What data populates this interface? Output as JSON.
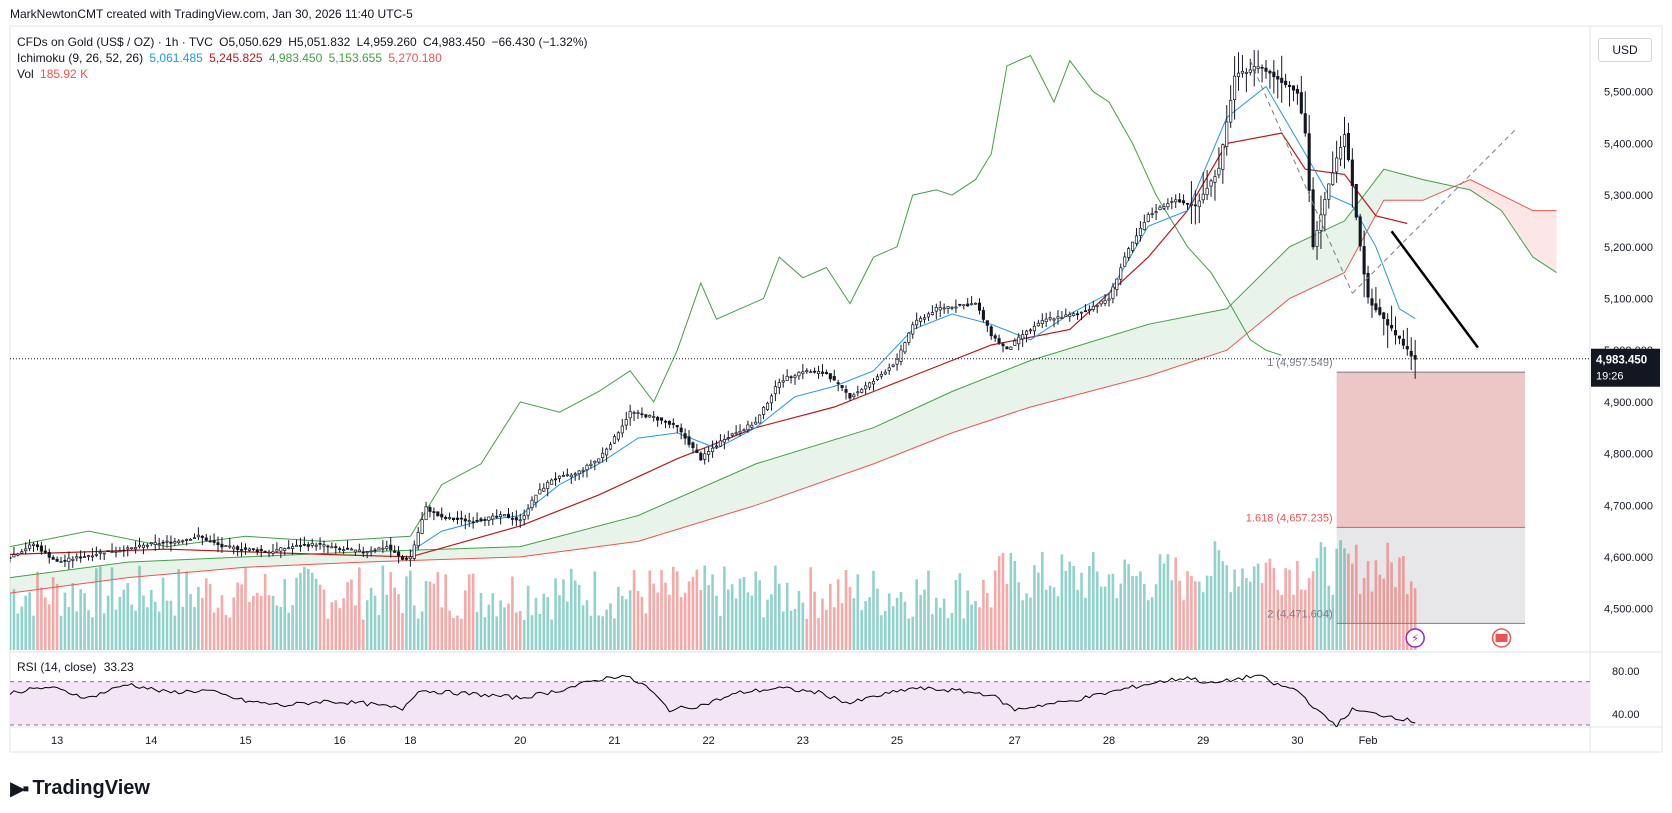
{
  "attribution": "MarkNewtonCMT created with TradingView.com, Jan 30, 2026 11:40 UTC-5",
  "currency": "USD",
  "legend": {
    "symbol": "CFDs on Gold (US$ / OZ) · 1h · TVC",
    "open": "O5,050.629",
    "high": "H5,051.832",
    "low": "L4,959.260",
    "close": "C4,983.450",
    "change": "−66.430 (−1.32%)",
    "ichimoku_label": "Ichimoku (9, 26, 52, 26)",
    "ichimoku_values": [
      "5,061.485",
      "5,245.825",
      "4,983.450",
      "5,153.655",
      "5,270.180"
    ],
    "vol_label": "Vol",
    "vol_value": "185.92 K"
  },
  "rsi_legend": {
    "label": "RSI (14, close)",
    "value": "33.23"
  },
  "logo_text": "TradingView",
  "colors": {
    "up": "#26a69a",
    "down": "#ef5350",
    "tenkan": "#2196f3",
    "kijun": "#b71c1c",
    "lagging": "#43a047",
    "span_a": "#43a047",
    "span_b": "#ef5350",
    "rsi_band": "#f3e5f5",
    "rsi_line": "#000000"
  },
  "chart_data": {
    "type": "candlestick",
    "title": "CFDs on Gold (US$ / OZ) · 1h · TVC",
    "ylim": [
      4420,
      5600
    ],
    "y_ticks": [
      4500,
      4600,
      4700,
      4800,
      4900,
      5000,
      5100,
      5200,
      5300,
      5400,
      5500
    ],
    "y_tick_labels": [
      "4,500.000",
      "4,600.000",
      "4,700.000",
      "4,800.000",
      "4,900.000",
      "5,000.000",
      "5,100.000",
      "5,200.000",
      "5,300.000",
      "5,400.000",
      "5,500.000"
    ],
    "x_labels": [
      "13",
      "14",
      "15",
      "16",
      "18",
      "20",
      "21",
      "22",
      "23",
      "25",
      "27",
      "28",
      "29",
      "30",
      "Feb"
    ],
    "x_label_times": [
      12,
      36,
      60,
      84,
      102,
      130,
      154,
      178,
      202,
      226,
      256,
      280,
      304,
      328,
      346
    ],
    "last_price": 4983.45,
    "last_price_label": "4,983.450",
    "countdown": "19:26",
    "close_path": [
      [
        0,
        4600
      ],
      [
        6,
        4625
      ],
      [
        12,
        4590
      ],
      [
        18,
        4600
      ],
      [
        24,
        4610
      ],
      [
        30,
        4615
      ],
      [
        36,
        4625
      ],
      [
        42,
        4630
      ],
      [
        48,
        4640
      ],
      [
        54,
        4620
      ],
      [
        60,
        4615
      ],
      [
        66,
        4610
      ],
      [
        72,
        4620
      ],
      [
        78,
        4625
      ],
      [
        84,
        4615
      ],
      [
        90,
        4610
      ],
      [
        96,
        4620
      ],
      [
        100,
        4595
      ],
      [
        102,
        4600
      ],
      [
        106,
        4695
      ],
      [
        110,
        4675
      ],
      [
        118,
        4670
      ],
      [
        126,
        4680
      ],
      [
        130,
        4670
      ],
      [
        134,
        4720
      ],
      [
        138,
        4750
      ],
      [
        144,
        4760
      ],
      [
        150,
        4790
      ],
      [
        154,
        4830
      ],
      [
        158,
        4880
      ],
      [
        164,
        4870
      ],
      [
        170,
        4850
      ],
      [
        176,
        4790
      ],
      [
        182,
        4830
      ],
      [
        190,
        4860
      ],
      [
        196,
        4940
      ],
      [
        202,
        4960
      ],
      [
        208,
        4955
      ],
      [
        214,
        4910
      ],
      [
        220,
        4940
      ],
      [
        226,
        4980
      ],
      [
        230,
        5050
      ],
      [
        236,
        5080
      ],
      [
        240,
        5085
      ],
      [
        246,
        5090
      ],
      [
        250,
        5030
      ],
      [
        254,
        5000
      ],
      [
        258,
        5030
      ],
      [
        264,
        5060
      ],
      [
        272,
        5070
      ],
      [
        280,
        5100
      ],
      [
        284,
        5180
      ],
      [
        290,
        5260
      ],
      [
        296,
        5290
      ],
      [
        302,
        5280
      ],
      [
        308,
        5350
      ],
      [
        312,
        5530
      ],
      [
        318,
        5550
      ],
      [
        324,
        5520
      ],
      [
        328,
        5500
      ],
      [
        330,
        5420
      ],
      [
        332,
        5200
      ],
      [
        336,
        5320
      ],
      [
        340,
        5420
      ],
      [
        342,
        5320
      ],
      [
        344,
        5200
      ],
      [
        346,
        5100
      ],
      [
        348,
        5080
      ],
      [
        352,
        5040
      ],
      [
        356,
        5000
      ],
      [
        358,
        4983
      ]
    ],
    "tenkan_path": [
      [
        102,
        4610
      ],
      [
        110,
        4650
      ],
      [
        120,
        4670
      ],
      [
        130,
        4680
      ],
      [
        140,
        4740
      ],
      [
        150,
        4780
      ],
      [
        160,
        4830
      ],
      [
        170,
        4840
      ],
      [
        180,
        4810
      ],
      [
        190,
        4850
      ],
      [
        200,
        4910
      ],
      [
        210,
        4930
      ],
      [
        220,
        4960
      ],
      [
        230,
        5040
      ],
      [
        240,
        5070
      ],
      [
        250,
        5050
      ],
      [
        260,
        5020
      ],
      [
        270,
        5070
      ],
      [
        280,
        5110
      ],
      [
        290,
        5240
      ],
      [
        300,
        5270
      ],
      [
        310,
        5450
      ],
      [
        320,
        5510
      ],
      [
        330,
        5380
      ],
      [
        336,
        5300
      ],
      [
        342,
        5280
      ],
      [
        348,
        5200
      ],
      [
        354,
        5080
      ],
      [
        358,
        5061
      ]
    ],
    "kijun_path": [
      [
        0,
        4605
      ],
      [
        40,
        4615
      ],
      [
        80,
        4605
      ],
      [
        102,
        4600
      ],
      [
        130,
        4660
      ],
      [
        150,
        4720
      ],
      [
        170,
        4790
      ],
      [
        190,
        4850
      ],
      [
        210,
        4890
      ],
      [
        230,
        4950
      ],
      [
        250,
        5010
      ],
      [
        270,
        5040
      ],
      [
        290,
        5180
      ],
      [
        300,
        5270
      ],
      [
        310,
        5400
      ],
      [
        324,
        5420
      ],
      [
        330,
        5350
      ],
      [
        340,
        5340
      ],
      [
        348,
        5260
      ],
      [
        356,
        5245
      ]
    ],
    "lagging_path": [
      [
        0,
        4620
      ],
      [
        20,
        4650
      ],
      [
        40,
        4620
      ],
      [
        60,
        4640
      ],
      [
        80,
        4630
      ],
      [
        102,
        4640
      ],
      [
        110,
        4740
      ],
      [
        120,
        4780
      ],
      [
        130,
        4900
      ],
      [
        140,
        4880
      ],
      [
        150,
        4920
      ],
      [
        158,
        4960
      ],
      [
        164,
        4900
      ],
      [
        170,
        5000
      ],
      [
        176,
        5130
      ],
      [
        180,
        5060
      ],
      [
        186,
        5080
      ],
      [
        192,
        5100
      ],
      [
        196,
        5180
      ],
      [
        202,
        5140
      ],
      [
        208,
        5160
      ],
      [
        214,
        5090
      ],
      [
        220,
        5180
      ],
      [
        226,
        5200
      ],
      [
        230,
        5300
      ],
      [
        236,
        5310
      ],
      [
        240,
        5300
      ],
      [
        246,
        5330
      ],
      [
        250,
        5380
      ],
      [
        254,
        5550
      ],
      [
        260,
        5570
      ],
      [
        266,
        5480
      ],
      [
        270,
        5560
      ],
      [
        276,
        5500
      ],
      [
        280,
        5480
      ],
      [
        286,
        5400
      ],
      [
        292,
        5300
      ],
      [
        300,
        5200
      ],
      [
        306,
        5150
      ],
      [
        310,
        5100
      ],
      [
        316,
        5020
      ],
      [
        320,
        5000
      ],
      [
        324,
        4990
      ]
    ],
    "span_a_path": [
      [
        0,
        4560
      ],
      [
        30,
        4590
      ],
      [
        60,
        4600
      ],
      [
        90,
        4610
      ],
      [
        130,
        4620
      ],
      [
        160,
        4680
      ],
      [
        190,
        4780
      ],
      [
        220,
        4850
      ],
      [
        240,
        4920
      ],
      [
        260,
        4980
      ],
      [
        290,
        5050
      ],
      [
        310,
        5080
      ],
      [
        326,
        5200
      ],
      [
        340,
        5250
      ],
      [
        350,
        5350
      ],
      [
        360,
        5330
      ],
      [
        372,
        5310
      ],
      [
        380,
        5270
      ],
      [
        388,
        5180
      ],
      [
        394,
        5150
      ]
    ],
    "span_b_path": [
      [
        0,
        4530
      ],
      [
        30,
        4560
      ],
      [
        60,
        4580
      ],
      [
        90,
        4590
      ],
      [
        130,
        4600
      ],
      [
        160,
        4630
      ],
      [
        190,
        4700
      ],
      [
        220,
        4780
      ],
      [
        240,
        4840
      ],
      [
        260,
        4890
      ],
      [
        290,
        4950
      ],
      [
        310,
        5000
      ],
      [
        326,
        5100
      ],
      [
        340,
        5150
      ],
      [
        350,
        5290
      ],
      [
        360,
        5290
      ],
      [
        372,
        5330
      ],
      [
        380,
        5300
      ],
      [
        388,
        5270
      ],
      [
        394,
        5270
      ]
    ],
    "annotations": [
      {
        "label": "1 (4,957.549)",
        "value": 4957.549
      },
      {
        "label": "1.618 (4,657.235)",
        "value": 4657.235
      },
      {
        "label": "2 (4,471.604)",
        "value": 4471.604
      }
    ],
    "fib_box": {
      "t0": 338,
      "t1": 386,
      "top": 4957.549,
      "mid": 4657.235,
      "bottom": 4471.604
    },
    "trendline": {
      "t0": 352,
      "v0": 5230,
      "t1": 374,
      "v1": 5005
    },
    "dashed_lines": [
      {
        "t0": 316,
        "v0": 5560,
        "t1": 342,
        "v1": 5110
      },
      {
        "t0": 342,
        "v0": 5110,
        "t1": 384,
        "v1": 5430
      }
    ],
    "vol_peak_value": 185.92,
    "rsi": {
      "ylim": [
        30,
        90
      ],
      "y_ticks": [
        40,
        80
      ],
      "y_tick_labels": [
        "40.00",
        "80.00"
      ],
      "band": [
        30,
        70
      ],
      "path": [
        [
          0,
          60
        ],
        [
          10,
          65
        ],
        [
          20,
          55
        ],
        [
          30,
          68
        ],
        [
          40,
          60
        ],
        [
          50,
          62
        ],
        [
          60,
          52
        ],
        [
          70,
          48
        ],
        [
          80,
          52
        ],
        [
          90,
          50
        ],
        [
          100,
          45
        ],
        [
          104,
          62
        ],
        [
          112,
          60
        ],
        [
          120,
          58
        ],
        [
          130,
          55
        ],
        [
          140,
          62
        ],
        [
          150,
          72
        ],
        [
          156,
          76
        ],
        [
          162,
          66
        ],
        [
          168,
          44
        ],
        [
          176,
          48
        ],
        [
          186,
          60
        ],
        [
          196,
          64
        ],
        [
          206,
          60
        ],
        [
          214,
          50
        ],
        [
          220,
          56
        ],
        [
          230,
          64
        ],
        [
          240,
          62
        ],
        [
          250,
          58
        ],
        [
          256,
          44
        ],
        [
          262,
          48
        ],
        [
          270,
          52
        ],
        [
          280,
          60
        ],
        [
          290,
          68
        ],
        [
          300,
          74
        ],
        [
          306,
          68
        ],
        [
          312,
          72
        ],
        [
          318,
          76
        ],
        [
          322,
          68
        ],
        [
          328,
          62
        ],
        [
          334,
          40
        ],
        [
          338,
          30
        ],
        [
          342,
          44
        ],
        [
          348,
          40
        ],
        [
          352,
          38
        ],
        [
          358,
          33
        ]
      ]
    }
  }
}
